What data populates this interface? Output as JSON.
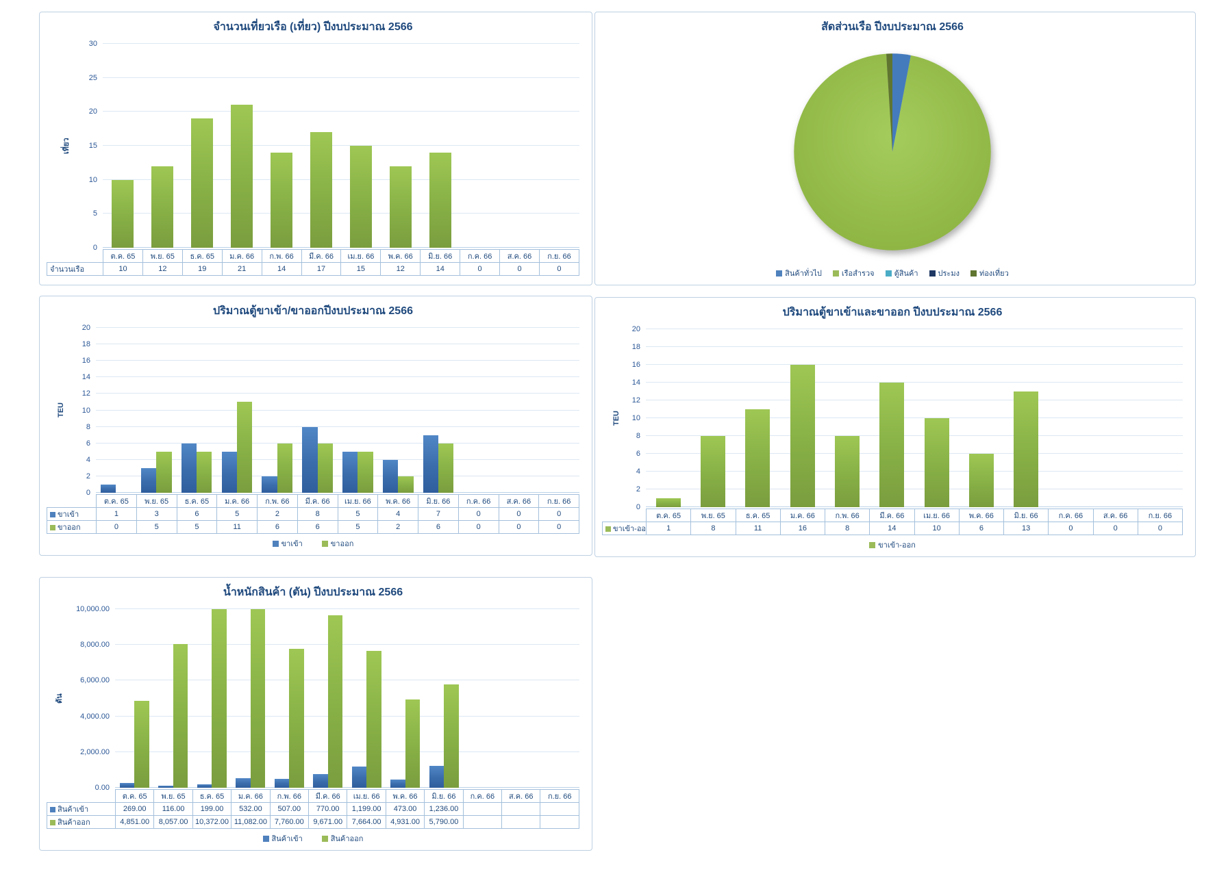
{
  "colors": {
    "title_text": "#1F497D",
    "tick_text": "#2B5796",
    "gridline": "#DCE7F3",
    "panel_border": "#BDD0E2",
    "table_border": "#A3C0DC",
    "bar_green": "#9BBB59",
    "bar_blue": "#4F81BD",
    "swatch_green": "#9BBB59",
    "swatch_blue": "#4F81BD"
  },
  "chart_data": [
    {
      "id": "vessel-trips",
      "type": "bar",
      "title": "จำนวนเที่ยวเรือ (เที่ยว) ปีงบประมาณ 2566",
      "xlabel": "",
      "ylabel": "เที่ยว",
      "ylim": [
        0,
        30
      ],
      "ystep": 5,
      "yticks": [
        "0",
        "5",
        "10",
        "15",
        "20",
        "25",
        "30"
      ],
      "grid": true,
      "legend_position": "none",
      "categories": [
        "ต.ค. 65",
        "พ.ย. 65",
        "ธ.ค. 65",
        "ม.ค. 66",
        "ก.พ. 66",
        "มี.ค. 66",
        "เม.ย. 66",
        "พ.ค. 66",
        "มิ.ย. 66",
        "ก.ค. 66",
        "ส.ค. 66",
        "ก.ย. 66"
      ],
      "series": [
        {
          "name": "จำนวนเรือ",
          "color": "green",
          "swatch": false,
          "values": [
            10,
            12,
            19,
            21,
            14,
            17,
            15,
            12,
            14,
            0,
            0,
            0
          ],
          "labels": [
            "10",
            "12",
            "19",
            "21",
            "14",
            "17",
            "15",
            "12",
            "14",
            "0",
            "0",
            "0"
          ]
        }
      ],
      "legend": null
    },
    {
      "id": "vessel-share",
      "type": "pie",
      "title": "สัดส่วนเรือ ปีงบประมาณ 2566",
      "legend_position": "bottom",
      "slices": [
        {
          "label": "สินค้าทั่วไป",
          "color": "#447BBD",
          "swatch": "#4F81BD",
          "pct": 3
        },
        {
          "label": "เรือสำรวจ",
          "color": "GPIE",
          "swatch": "#9BBB59",
          "pct": 96
        },
        {
          "label": "ตู้สินค้า",
          "color": "#4BACC6",
          "swatch": "#4BACC6",
          "pct": 0
        },
        {
          "label": "ประมง",
          "color": "#1F3864",
          "swatch": "#1F3864",
          "pct": 0
        },
        {
          "label": "ท่องเที่ยว",
          "color": "#5F7530",
          "swatch": "#5F7530",
          "pct": 1
        }
      ]
    },
    {
      "id": "teu-in-out",
      "type": "bar",
      "title": "ปริมาณตู้ขาเข้า/ขาออกปีงบประมาณ 2566",
      "xlabel": "",
      "ylabel": "TEU",
      "ylim": [
        0,
        20
      ],
      "ystep": 2,
      "yticks": [
        "0",
        "2",
        "4",
        "6",
        "8",
        "10",
        "12",
        "14",
        "16",
        "18",
        "20"
      ],
      "grid": true,
      "legend_position": "bottom",
      "categories": [
        "ต.ค. 65",
        "พ.ย. 65",
        "ธ.ค. 65",
        "ม.ค. 66",
        "ก.พ. 66",
        "มี.ค. 66",
        "เม.ย. 66",
        "พ.ค. 66",
        "มิ.ย. 66",
        "ก.ค. 66",
        "ส.ค. 66",
        "ก.ย. 66"
      ],
      "series": [
        {
          "name": "ขาเข้า",
          "color": "blue",
          "swatch": true,
          "values": [
            1,
            3,
            6,
            5,
            2,
            8,
            5,
            4,
            7,
            0,
            0,
            0
          ],
          "labels": [
            "1",
            "3",
            "6",
            "5",
            "2",
            "8",
            "5",
            "4",
            "7",
            "0",
            "0",
            "0"
          ]
        },
        {
          "name": "ขาออก",
          "color": "green",
          "swatch": true,
          "values": [
            0,
            5,
            5,
            11,
            6,
            6,
            5,
            2,
            6,
            0,
            0,
            0
          ],
          "labels": [
            "0",
            "5",
            "5",
            "11",
            "6",
            "6",
            "5",
            "2",
            "6",
            "0",
            "0",
            "0"
          ]
        }
      ],
      "legend": [
        "ขาเข้า",
        "ขาออก"
      ]
    },
    {
      "id": "teu-total",
      "type": "bar",
      "title": "ปริมาณตู้ขาเข้าและขาออก ปีงบประมาณ 2566",
      "xlabel": "",
      "ylabel": "TEU",
      "ylim": [
        0,
        20
      ],
      "ystep": 2,
      "yticks": [
        "0",
        "2",
        "4",
        "6",
        "8",
        "10",
        "12",
        "14",
        "16",
        "18",
        "20"
      ],
      "grid": true,
      "legend_position": "bottom",
      "categories": [
        "ต.ค. 65",
        "พ.ย. 65",
        "ธ.ค. 65",
        "ม.ค. 66",
        "ก.พ. 66",
        "มี.ค. 66",
        "เม.ย. 66",
        "พ.ค. 66",
        "มิ.ย. 66",
        "ก.ค. 66",
        "ส.ค. 66",
        "ก.ย. 66"
      ],
      "series": [
        {
          "name": "ขาเข้า-ออก",
          "color": "green",
          "swatch": true,
          "values": [
            1,
            8,
            11,
            16,
            8,
            14,
            10,
            6,
            13,
            0,
            0,
            0
          ],
          "labels": [
            "1",
            "8",
            "11",
            "16",
            "8",
            "14",
            "10",
            "6",
            "13",
            "0",
            "0",
            "0"
          ]
        }
      ],
      "legend": [
        "ขาเข้า-ออก"
      ]
    },
    {
      "id": "cargo-weight",
      "type": "bar",
      "title": "น้ำหนักสินค้า (ตัน) ปีงบประมาณ 2566",
      "xlabel": "",
      "ylabel": "ตัน",
      "ylim": [
        0,
        10000
      ],
      "ystep": 2000,
      "yticks": [
        "0.00",
        "2,000.00",
        "4,000.00",
        "6,000.00",
        "8,000.00",
        "10,000.00"
      ],
      "grid": true,
      "legend_position": "bottom",
      "categories": [
        "ต.ค. 65",
        "พ.ย. 65",
        "ธ.ค. 65",
        "ม.ค. 66",
        "ก.พ. 66",
        "มี.ค. 66",
        "เม.ย. 66",
        "พ.ค. 66",
        "มิ.ย. 66",
        "ก.ค. 66",
        "ส.ค. 66",
        "ก.ย. 66"
      ],
      "series": [
        {
          "name": "สินค้าเข้า",
          "color": "blue",
          "swatch": true,
          "values": [
            269,
            116,
            199,
            532,
            507,
            770,
            1199,
            473,
            1236,
            null,
            null,
            null
          ],
          "labels": [
            "269.00",
            "116.00",
            "199.00",
            "532.00",
            "507.00",
            "770.00",
            "1,199.00",
            "473.00",
            "1,236.00",
            "",
            "",
            ""
          ]
        },
        {
          "name": "สินค้าออก",
          "color": "green",
          "swatch": true,
          "values": [
            4851,
            8057,
            10372,
            11082,
            7760,
            9671,
            7664,
            4931,
            5790,
            null,
            null,
            null
          ],
          "labels": [
            "4,851.00",
            "8,057.00",
            "10,372.00",
            "11,082.00",
            "7,760.00",
            "9,671.00",
            "7,664.00",
            "4,931.00",
            "5,790.00",
            "",
            "",
            ""
          ]
        }
      ],
      "legend": [
        "สินค้าเข้า",
        "สินค้าออก"
      ]
    }
  ]
}
